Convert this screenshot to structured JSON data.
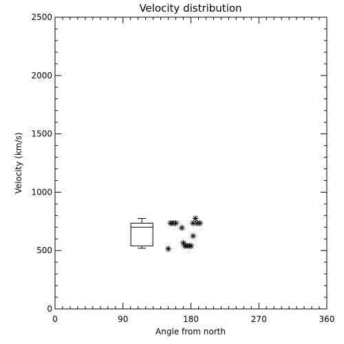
{
  "chart_data": {
    "type": "scatter",
    "title": "Velocity distribution",
    "xlabel": "Angle from north",
    "ylabel": "Velocity (km/s)",
    "xlim": [
      0,
      360
    ],
    "ylim": [
      0,
      2500
    ],
    "xticks": [
      0,
      90,
      180,
      270,
      360
    ],
    "yticks": [
      0,
      500,
      1000,
      1500,
      2000,
      2500
    ],
    "x_minor_step": 10,
    "y_minor_step": 100,
    "grid": false,
    "legend": "none",
    "boxplot": {
      "x": 115,
      "whisker_low": 520,
      "q1": 540,
      "median": 700,
      "q3": 735,
      "whisker_high": 775
    },
    "points": [
      {
        "x": 150,
        "y": 515
      },
      {
        "x": 153,
        "y": 735
      },
      {
        "x": 156,
        "y": 735
      },
      {
        "x": 160,
        "y": 735
      },
      {
        "x": 168,
        "y": 695
      },
      {
        "x": 170,
        "y": 565
      },
      {
        "x": 172,
        "y": 540
      },
      {
        "x": 175,
        "y": 540
      },
      {
        "x": 178,
        "y": 540
      },
      {
        "x": 180,
        "y": 540
      },
      {
        "x": 183,
        "y": 625
      },
      {
        "x": 183,
        "y": 735
      },
      {
        "x": 186,
        "y": 775
      },
      {
        "x": 188,
        "y": 735
      },
      {
        "x": 192,
        "y": 735
      }
    ],
    "marker": "asterisk",
    "color": "#000000"
  }
}
